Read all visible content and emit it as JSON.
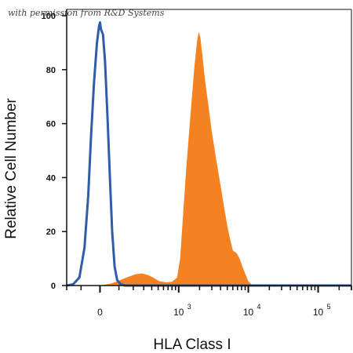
{
  "watermark": "with permission from R&D Systems",
  "chart_data": {
    "type": "area",
    "xlabel": "HLA Class I",
    "ylabel": "Relative Cell Number",
    "x_scale": "biexponential",
    "xlim": [
      -200,
      300000
    ],
    "ylim": [
      0,
      100
    ],
    "yticks": [
      0,
      20,
      40,
      60,
      80,
      100
    ],
    "xticks": [
      {
        "value": 0,
        "base": "0",
        "exp": ""
      },
      {
        "value": 1000,
        "base": "10",
        "exp": "3"
      },
      {
        "value": 10000,
        "base": "10",
        "exp": "4"
      },
      {
        "value": 100000,
        "base": "10",
        "exp": "5"
      }
    ],
    "grid": false,
    "series": [
      {
        "style": "filled",
        "color": "#F58220",
        "points": [
          [
            -200,
            0
          ],
          [
            0,
            0
          ],
          [
            60,
            0.8
          ],
          [
            100,
            1.8
          ],
          [
            160,
            3.2
          ],
          [
            220,
            4.2
          ],
          [
            280,
            4.5
          ],
          [
            340,
            4.0
          ],
          [
            420,
            3.0
          ],
          [
            520,
            1.6
          ],
          [
            650,
            1.2
          ],
          [
            800,
            1.4
          ],
          [
            950,
            3
          ],
          [
            1050,
            10
          ],
          [
            1150,
            25
          ],
          [
            1300,
            45
          ],
          [
            1500,
            65
          ],
          [
            1700,
            82
          ],
          [
            1850,
            91
          ],
          [
            1950,
            94
          ],
          [
            2050,
            92
          ],
          [
            2200,
            85
          ],
          [
            2400,
            76
          ],
          [
            2700,
            66
          ],
          [
            3000,
            57
          ],
          [
            3500,
            46
          ],
          [
            4000,
            37
          ],
          [
            4500,
            29
          ],
          [
            5000,
            22
          ],
          [
            5500,
            17
          ],
          [
            6000,
            13
          ],
          [
            6800,
            12
          ],
          [
            7500,
            10
          ],
          [
            8500,
            6
          ],
          [
            9500,
            3
          ],
          [
            10000,
            1.5
          ],
          [
            11000,
            0.5
          ],
          [
            13000,
            0
          ]
        ]
      },
      {
        "style": "line",
        "color": "#2E5EA8",
        "points": [
          [
            -200,
            0
          ],
          [
            -150,
            0.5
          ],
          [
            -110,
            3
          ],
          [
            -80,
            14
          ],
          [
            -60,
            33
          ],
          [
            -45,
            55
          ],
          [
            -30,
            75
          ],
          [
            -15,
            90
          ],
          [
            -5,
            96
          ],
          [
            0,
            97.5
          ],
          [
            5,
            95
          ],
          [
            15,
            93
          ],
          [
            25,
            83
          ],
          [
            38,
            62
          ],
          [
            50,
            40
          ],
          [
            62,
            20
          ],
          [
            75,
            7
          ],
          [
            90,
            2
          ],
          [
            110,
            0.5
          ],
          [
            140,
            0
          ],
          [
            300000,
            0
          ]
        ]
      }
    ]
  }
}
